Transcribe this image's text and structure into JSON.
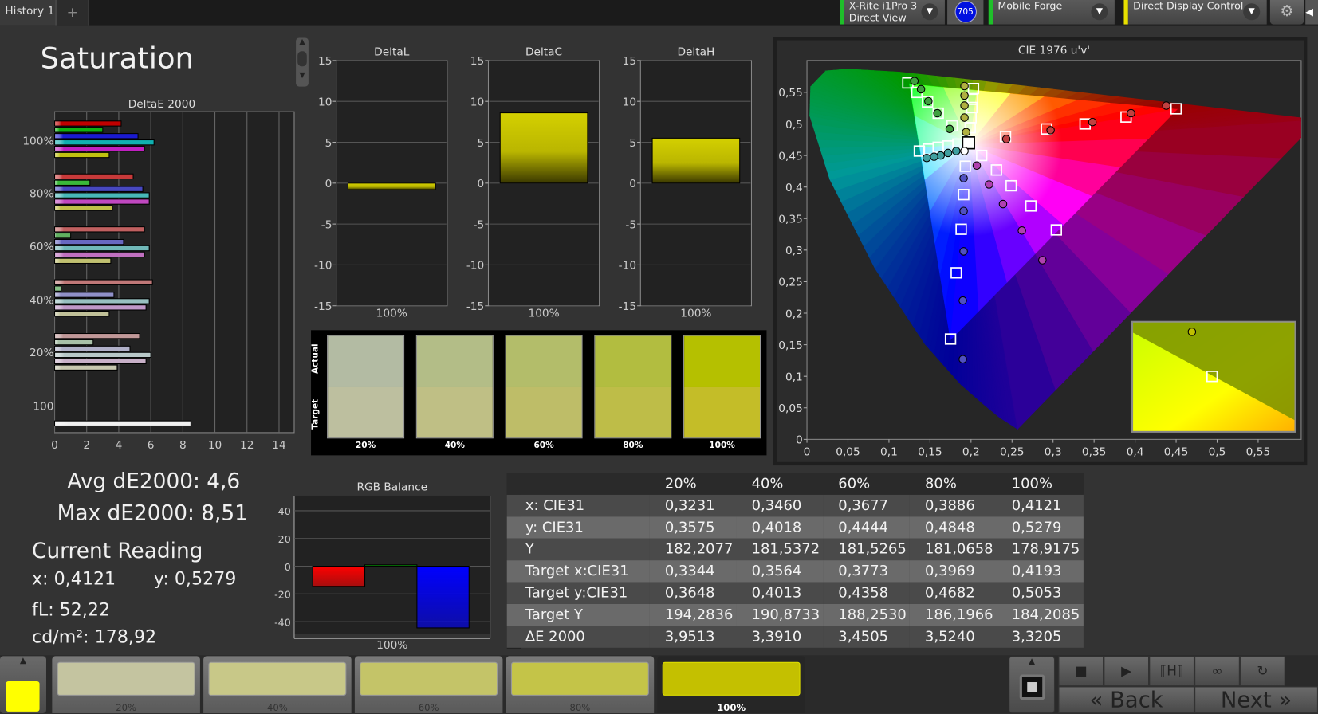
{
  "top": {
    "tab": "History 1",
    "add_tab": "+",
    "meter_line1": "X-Rite i1Pro 3",
    "meter_line2": "Direct View",
    "meter_badge": "705",
    "source": "Mobile Forge",
    "display": "Direct Display Control"
  },
  "page_title": "Saturation",
  "deltae_chart": {
    "title": "DeltaE 2000",
    "row_labels": [
      "100%",
      "80%",
      "60%",
      "40%",
      "20%",
      "100"
    ],
    "x_ticks": [
      "0",
      "2",
      "4",
      "6",
      "8",
      "10",
      "12",
      "14"
    ],
    "xlim": [
      0,
      15
    ],
    "levels": [
      {
        "label": "100%",
        "values": [
          4.15,
          3.0,
          5.2,
          6.2,
          5.6,
          3.4
        ],
        "colors": [
          "#c00000",
          "#10b010",
          "#1a1ad0",
          "#10b0b0",
          "#c020c0",
          "#c0c010"
        ]
      },
      {
        "label": "80%",
        "values": [
          4.9,
          2.2,
          5.5,
          5.9,
          5.9,
          3.6
        ],
        "colors": [
          "#c83a3a",
          "#3ab83a",
          "#4848c0",
          "#48b8b8",
          "#c048c0",
          "#c0c048"
        ]
      },
      {
        "label": "60%",
        "values": [
          5.6,
          1.0,
          4.3,
          5.9,
          5.6,
          3.5
        ],
        "colors": [
          "#c06060",
          "#60b060",
          "#6868c0",
          "#70b8b8",
          "#c070c0",
          "#c0c070"
        ]
      },
      {
        "label": "40%",
        "values": [
          6.1,
          0.4,
          3.7,
          5.9,
          5.7,
          3.4
        ],
        "colors": [
          "#c07878",
          "#88c088",
          "#9090c8",
          "#98c0c0",
          "#c098c8",
          "#c0c098"
        ]
      },
      {
        "label": "20%",
        "values": [
          5.3,
          2.4,
          4.7,
          6.0,
          5.7,
          3.9
        ],
        "colors": [
          "#c09898",
          "#a8c0a8",
          "#b0b0c8",
          "#b8c8c8",
          "#c8b0c8",
          "#c8c8b0"
        ]
      },
      {
        "label": "100",
        "values": [
          8.5
        ],
        "colors": [
          "#f0f0f0"
        ]
      }
    ]
  },
  "delta_charts": [
    {
      "title": "DeltaL",
      "value": -0.8,
      "category": "100%"
    },
    {
      "title": "DeltaC",
      "value": 8.6,
      "category": "100%"
    },
    {
      "title": "DeltaH",
      "value": 5.5,
      "category": "100%"
    }
  ],
  "delta_y_ticks": [
    "15",
    "10",
    "5",
    "0",
    "-5",
    "-10",
    "-15"
  ],
  "swatches": {
    "actual_label": "Actual",
    "target_label": "Target",
    "items": [
      {
        "label": "20%",
        "actual": "#b3bba3",
        "target": "#bdbf9f"
      },
      {
        "label": "40%",
        "actual": "#b3bd87",
        "target": "#bfbf85"
      },
      {
        "label": "60%",
        "actual": "#b3bd6a",
        "target": "#bebd68"
      },
      {
        "label": "80%",
        "actual": "#b2bd40",
        "target": "#bebd48"
      },
      {
        "label": "100%",
        "actual": "#b5c000",
        "target": "#c4bd28"
      }
    ]
  },
  "cie": {
    "title": "CIE 1976 u'v'",
    "xlim": [
      0,
      0.6
    ],
    "ylim": [
      0,
      0.6
    ],
    "x_ticks": [
      "0",
      "0,05",
      "0,1",
      "0,15",
      "0,2",
      "0,25",
      "0,3",
      "0,35",
      "0,4",
      "0,45",
      "0,5",
      "0,55"
    ],
    "y_ticks": [
      "0",
      "0,05",
      "0,1",
      "0,15",
      "0,2",
      "0,25",
      "0,3",
      "0,35",
      "0,4",
      "0,45",
      "0,5",
      "0,55"
    ],
    "white": {
      "target": [
        0.197,
        0.47
      ],
      "measured": [
        0.192,
        0.457
      ]
    },
    "series": [
      {
        "color": "red",
        "target": [
          [
            0.242,
            0.48
          ],
          [
            0.292,
            0.492
          ],
          [
            0.339,
            0.5
          ],
          [
            0.389,
            0.511
          ],
          [
            0.45,
            0.524
          ]
        ],
        "measured": [
          [
            0.243,
            0.476
          ],
          [
            0.297,
            0.49
          ],
          [
            0.348,
            0.503
          ],
          [
            0.395,
            0.517
          ],
          [
            0.438,
            0.529
          ]
        ],
        "fill": "#c04040"
      },
      {
        "color": "green",
        "target": [
          [
            0.177,
            0.497
          ],
          [
            0.16,
            0.517
          ],
          [
            0.147,
            0.535
          ],
          [
            0.134,
            0.55
          ],
          [
            0.123,
            0.565
          ]
        ],
        "measured": [
          [
            0.174,
            0.492
          ],
          [
            0.159,
            0.517
          ],
          [
            0.148,
            0.536
          ],
          [
            0.139,
            0.555
          ],
          [
            0.131,
            0.568
          ]
        ],
        "fill": "#40a040"
      },
      {
        "color": "blue",
        "target": [
          [
            0.193,
            0.433
          ],
          [
            0.191,
            0.388
          ],
          [
            0.188,
            0.333
          ],
          [
            0.182,
            0.264
          ],
          [
            0.175,
            0.159
          ]
        ],
        "measured": [
          [
            0.191,
            0.414
          ],
          [
            0.191,
            0.362
          ],
          [
            0.191,
            0.298
          ],
          [
            0.19,
            0.22
          ],
          [
            0.19,
            0.127
          ]
        ],
        "fill": "#5050c0"
      },
      {
        "color": "cyan",
        "target": [
          [
            0.184,
            0.468
          ],
          [
            0.172,
            0.465
          ],
          [
            0.16,
            0.463
          ],
          [
            0.148,
            0.46
          ],
          [
            0.137,
            0.457
          ]
        ],
        "measured": [
          [
            0.182,
            0.457
          ],
          [
            0.172,
            0.454
          ],
          [
            0.163,
            0.45
          ],
          [
            0.155,
            0.448
          ],
          [
            0.146,
            0.446
          ]
        ],
        "fill": "#40a0a0"
      },
      {
        "color": "magenta",
        "target": [
          [
            0.213,
            0.45
          ],
          [
            0.231,
            0.427
          ],
          [
            0.249,
            0.402
          ],
          [
            0.273,
            0.37
          ],
          [
            0.304,
            0.332
          ]
        ],
        "measured": [
          [
            0.207,
            0.434
          ],
          [
            0.222,
            0.404
          ],
          [
            0.239,
            0.373
          ],
          [
            0.262,
            0.331
          ],
          [
            0.287,
            0.284
          ]
        ],
        "fill": "#b040b0"
      },
      {
        "color": "yellow",
        "target": [
          [
            0.199,
            0.494
          ],
          [
            0.2,
            0.51
          ],
          [
            0.201,
            0.526
          ],
          [
            0.202,
            0.539
          ],
          [
            0.203,
            0.556
          ]
        ],
        "measured": [
          [
            0.194,
            0.487
          ],
          [
            0.192,
            0.51
          ],
          [
            0.192,
            0.529
          ],
          [
            0.192,
            0.545
          ],
          [
            0.192,
            0.56
          ]
        ],
        "fill": "#b0b040"
      }
    ]
  },
  "readings": {
    "avg": "Avg dE2000: 4,6",
    "max": "Max dE2000: 8,51",
    "current": "Current Reading",
    "x": "x: 0,4121",
    "y": "y: 0,5279",
    "fl": "fL: 52,22",
    "cdm2": "cd/m²: 178,92"
  },
  "rgb_balance": {
    "title": "RGB Balance",
    "y_ticks": [
      "40",
      "20",
      "0",
      "-20",
      "-40"
    ],
    "category": "100%",
    "ylim": [
      -50,
      50
    ],
    "values": {
      "red": -14.5,
      "green": 1.0,
      "blue": -44.5
    }
  },
  "table": {
    "headers": [
      "",
      "20%",
      "40%",
      "60%",
      "80%",
      "100%"
    ],
    "rows": [
      [
        "x: CIE31",
        "0,3231",
        "0,3460",
        "0,3677",
        "0,3886",
        "0,4121"
      ],
      [
        "y: CIE31",
        "0,3575",
        "0,4018",
        "0,4444",
        "0,4848",
        "0,5279"
      ],
      [
        "Y",
        "182,2077",
        "181,5372",
        "181,5265",
        "181,0658",
        "178,9175"
      ],
      [
        "Target x:CIE31",
        "0,3344",
        "0,3564",
        "0,3773",
        "0,3969",
        "0,4193"
      ],
      [
        "Target y:CIE31",
        "0,3648",
        "0,4013",
        "0,4358",
        "0,4682",
        "0,5053"
      ],
      [
        "Target Y",
        "194,2836",
        "190,8733",
        "188,2530",
        "186,1966",
        "184,2085"
      ],
      [
        "ΔE 2000",
        "3,9513",
        "3,3910",
        "3,4505",
        "3,5240",
        "3,3205"
      ]
    ]
  },
  "bottom": {
    "current_color": "#ffff00",
    "patches": [
      {
        "label": "20%",
        "color": "#c4c4a0"
      },
      {
        "label": "40%",
        "color": "#c8c888"
      },
      {
        "label": "60%",
        "color": "#c4c468"
      },
      {
        "label": "80%",
        "color": "#c4c448"
      },
      {
        "label": "100%",
        "color": "#c4c000",
        "active": true
      }
    ],
    "back": "Back",
    "next": "Next"
  }
}
